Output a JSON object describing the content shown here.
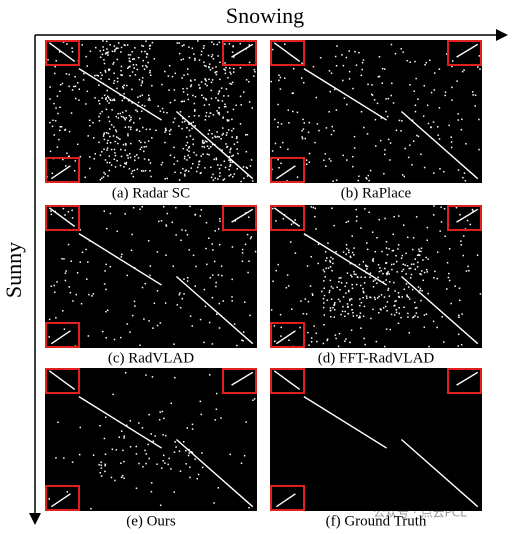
{
  "axes": {
    "x_label": "Snowing",
    "y_label": "Sunny"
  },
  "panels": [
    {
      "caption": "(a) Radar SC"
    },
    {
      "caption": "(b) RaPlace"
    },
    {
      "caption": "(c) RadVLAD"
    },
    {
      "caption": "(d) FFT-RadVLAD"
    },
    {
      "caption": "(e) Ours"
    },
    {
      "caption": "(f) Ground Truth"
    }
  ],
  "watermark": "公众号 · 点云PCL"
}
